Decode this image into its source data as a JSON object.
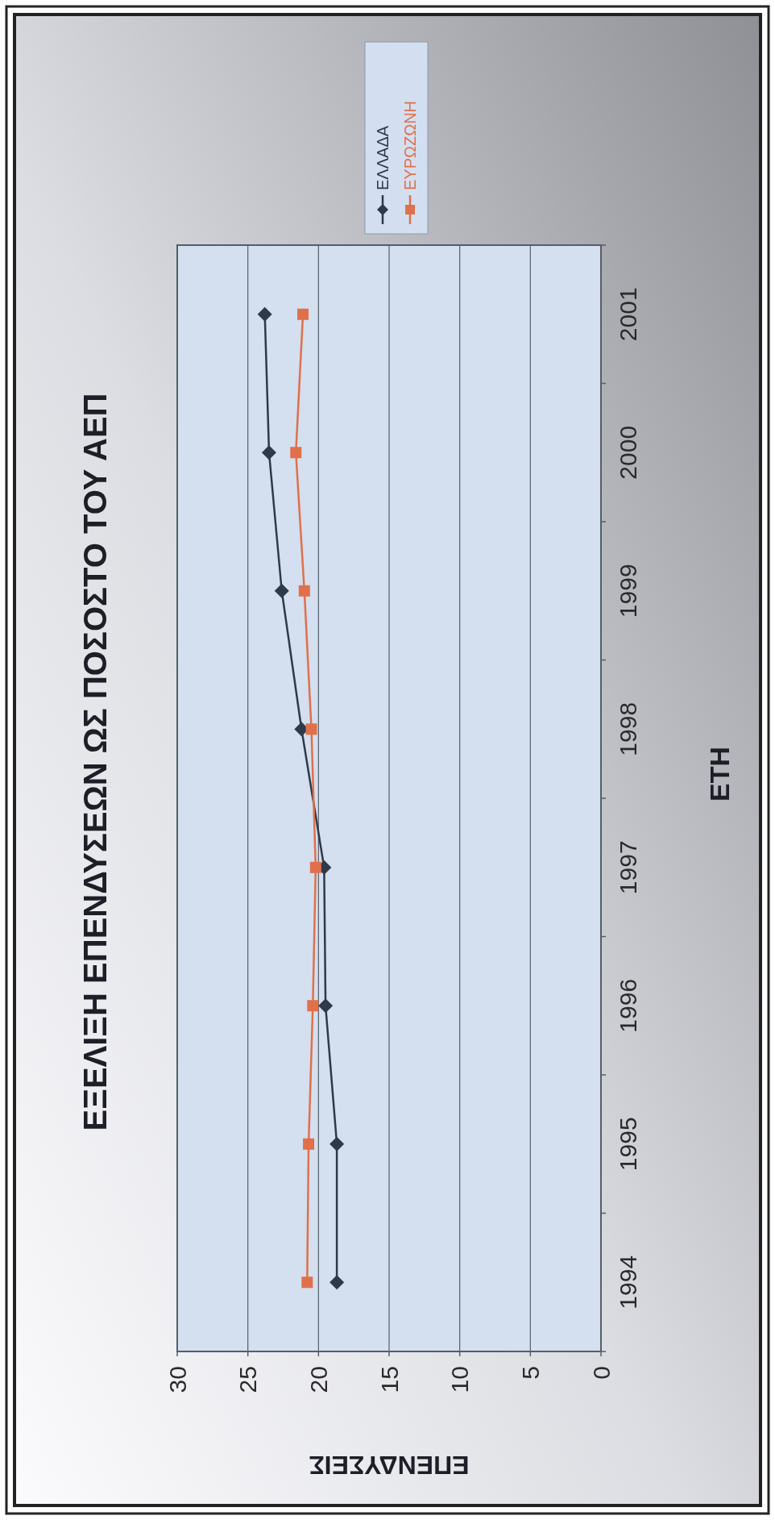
{
  "chart_data": {
    "type": "line",
    "orientation": "horizontal",
    "title": "ΕΞΕΛΙΞΗ ΕΠΕΝΔΥΣΕΩΝ ΩΣ ΠΟΣΟΣΤΟ ΤΟΥ ΑΕΠ",
    "ylabel": "ΕΤΗ",
    "xlabel": "ΕΠΕΝΔΥΣΕΙΣ",
    "categories": [
      "2001",
      "2000",
      "1999",
      "1998",
      "1997",
      "1996",
      "1995",
      "1994"
    ],
    "series": [
      {
        "name": "ΕΛΛΑΔΑ",
        "color": "#2e3a4a",
        "marker": "diamond",
        "values": [
          23.8,
          23.5,
          22.6,
          21.2,
          19.6,
          19.5,
          18.7,
          18.7
        ]
      },
      {
        "name": "ΕΥΡΩΖΩΝΗ",
        "color": "#e0704a",
        "marker": "square",
        "values": [
          21.1,
          21.6,
          21.0,
          20.5,
          20.2,
          20.4,
          20.7,
          20.8
        ]
      }
    ],
    "xlim": [
      30,
      0
    ],
    "xticks": [
      30,
      25,
      20,
      15,
      10,
      5,
      0
    ],
    "grid": "x",
    "legend": "top"
  }
}
